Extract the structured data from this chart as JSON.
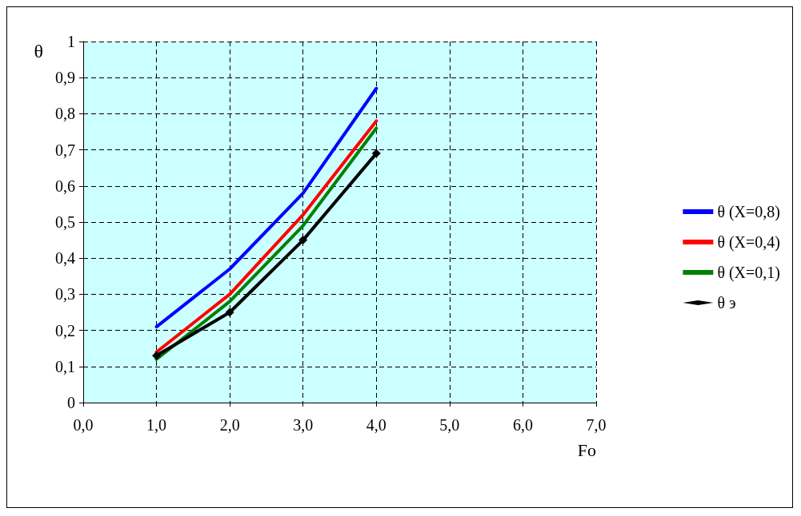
{
  "chart_data": {
    "type": "line",
    "xlabel": "Fo",
    "ylabel": "θ",
    "x": [
      1,
      2,
      3,
      4
    ],
    "series": [
      {
        "name": "θ (X=0,8)",
        "color": "#0000ff",
        "values": [
          0.21,
          0.37,
          0.58,
          0.87
        ],
        "marker": "none"
      },
      {
        "name": "θ (X=0,4)",
        "color": "#ff0000",
        "values": [
          0.14,
          0.3,
          0.52,
          0.78
        ],
        "marker": "none"
      },
      {
        "name": "θ (X=0,1)",
        "color": "#008000",
        "values": [
          0.12,
          0.28,
          0.49,
          0.76
        ],
        "marker": "none"
      },
      {
        "name": "θ э",
        "color": "#000000",
        "values": [
          0.13,
          0.25,
          0.45,
          0.69
        ],
        "marker": "diamond"
      }
    ],
    "xlim": [
      0,
      7
    ],
    "xticks": [
      {
        "value": 0,
        "label": "0,0"
      },
      {
        "value": 1,
        "label": "1,0"
      },
      {
        "value": 2,
        "label": "2,0"
      },
      {
        "value": 3,
        "label": "3,0"
      },
      {
        "value": 4,
        "label": "4,0"
      },
      {
        "value": 5,
        "label": "5,0"
      },
      {
        "value": 6,
        "label": "6,0"
      },
      {
        "value": 7,
        "label": "7,0"
      }
    ],
    "ylim": [
      0,
      1
    ],
    "yticks": [
      0,
      {
        "value": 0.1,
        "label": "0,1"
      },
      {
        "value": 0.2,
        "label": "0,2"
      },
      {
        "value": 0.3,
        "label": "0,3"
      },
      {
        "value": 0.4,
        "label": "0,4"
      },
      {
        "value": 0.5,
        "label": "0,5"
      },
      {
        "value": 0.6,
        "label": "0,6"
      },
      {
        "value": 0.7,
        "label": "0,7"
      },
      {
        "value": 0.8,
        "label": "0,8"
      },
      {
        "value": 0.9,
        "label": "0,9"
      },
      1
    ],
    "grid": true,
    "legend": "right",
    "line_style": "solid"
  }
}
